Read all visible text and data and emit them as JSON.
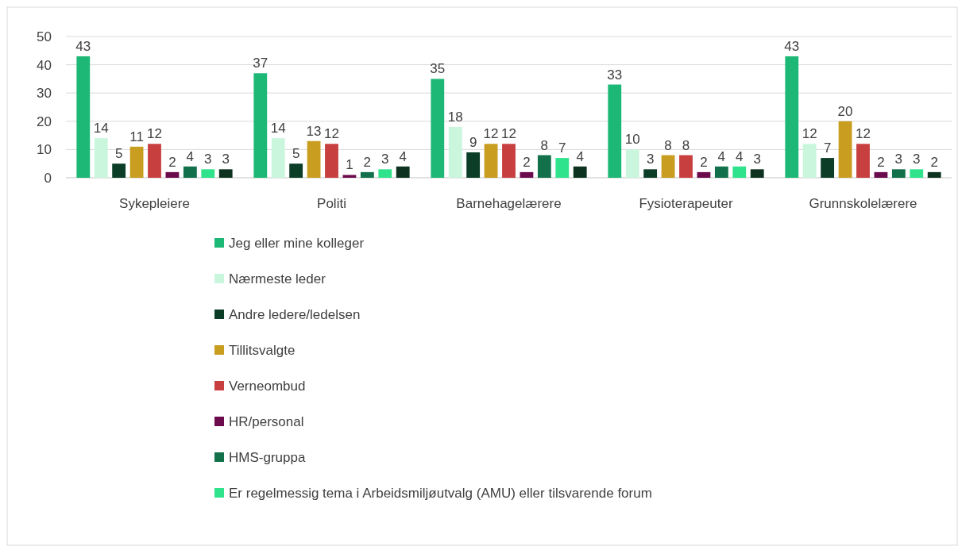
{
  "chart_data": {
    "type": "bar",
    "categories": [
      "Sykepleiere",
      "Politi",
      "Barnehagelærere",
      "Fysioterapeuter",
      "Grunnskolelærere"
    ],
    "series": [
      {
        "name": "Jeg eller mine kolleger",
        "color": "#1db876",
        "values": [
          43,
          37,
          35,
          33,
          43
        ]
      },
      {
        "name": "Nærmeste leder",
        "color": "#c9f6dd",
        "values": [
          14,
          14,
          18,
          10,
          12
        ]
      },
      {
        "name": "Andre ledere/ledelsen",
        "color": "#0b3d27",
        "values": [
          5,
          5,
          9,
          3,
          7
        ]
      },
      {
        "name": "Tillitsvalgte",
        "color": "#c99d1f",
        "values": [
          11,
          13,
          12,
          8,
          20
        ]
      },
      {
        "name": "Verneombud",
        "color": "#c73f3f",
        "values": [
          12,
          12,
          12,
          8,
          12
        ]
      },
      {
        "name": "HR/personal",
        "color": "#6b0b4c",
        "values": [
          2,
          1,
          2,
          2,
          2
        ]
      },
      {
        "name": "HMS-gruppa",
        "color": "#12704b",
        "values": [
          4,
          2,
          8,
          4,
          3
        ]
      },
      {
        "name": "Er regelmessig tema i Arbeidsmiljøutvalg (AMU) eller tilsvarende forum",
        "color": "#2fe38c",
        "values": [
          3,
          3,
          7,
          4,
          3
        ]
      },
      {
        "color": "#0d3320",
        "values": [
          3,
          4,
          4,
          3,
          2
        ]
      }
    ],
    "ylim": [
      0,
      50
    ],
    "yticks": [
      0,
      10,
      20,
      30,
      40,
      50
    ],
    "grid": "y",
    "legend": "bottom",
    "data_labels": true
  }
}
